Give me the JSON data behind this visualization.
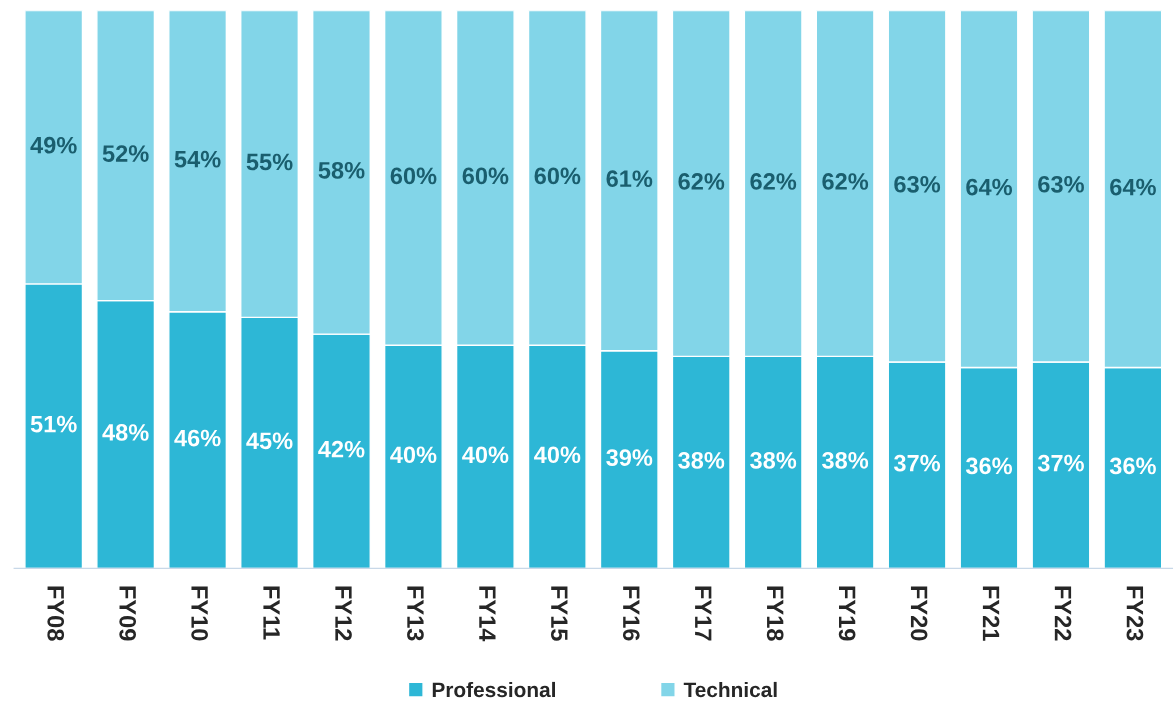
{
  "chart_data": {
    "type": "bar",
    "stacked": true,
    "categories": [
      "FY08",
      "FY09",
      "FY10",
      "FY11",
      "FY12",
      "FY13",
      "FY14",
      "FY15",
      "FY16",
      "FY17",
      "FY18",
      "FY19",
      "FY20",
      "FY21",
      "FY22",
      "FY23"
    ],
    "series": [
      {
        "name": "Professional",
        "color": "#2db7d6",
        "values": [
          51,
          48,
          46,
          45,
          42,
          40,
          40,
          40,
          39,
          38,
          38,
          38,
          37,
          36,
          37,
          36
        ],
        "value_labels": [
          "51%",
          "48%",
          "46%",
          "45%",
          "42%",
          "40%",
          "40%",
          "40%",
          "39%",
          "38%",
          "38%",
          "38%",
          "37%",
          "36%",
          "37%",
          "36%"
        ]
      },
      {
        "name": "Technical",
        "color": "#82d5e8",
        "values": [
          49,
          52,
          54,
          55,
          58,
          60,
          60,
          60,
          61,
          62,
          62,
          62,
          63,
          64,
          63,
          64
        ],
        "value_labels": [
          "49%",
          "52%",
          "54%",
          "55%",
          "58%",
          "60%",
          "60%",
          "60%",
          "61%",
          "62%",
          "62%",
          "62%",
          "63%",
          "64%",
          "63%",
          "64%"
        ]
      }
    ],
    "legend": "bottom",
    "grid": false,
    "tick_labels": "x"
  }
}
